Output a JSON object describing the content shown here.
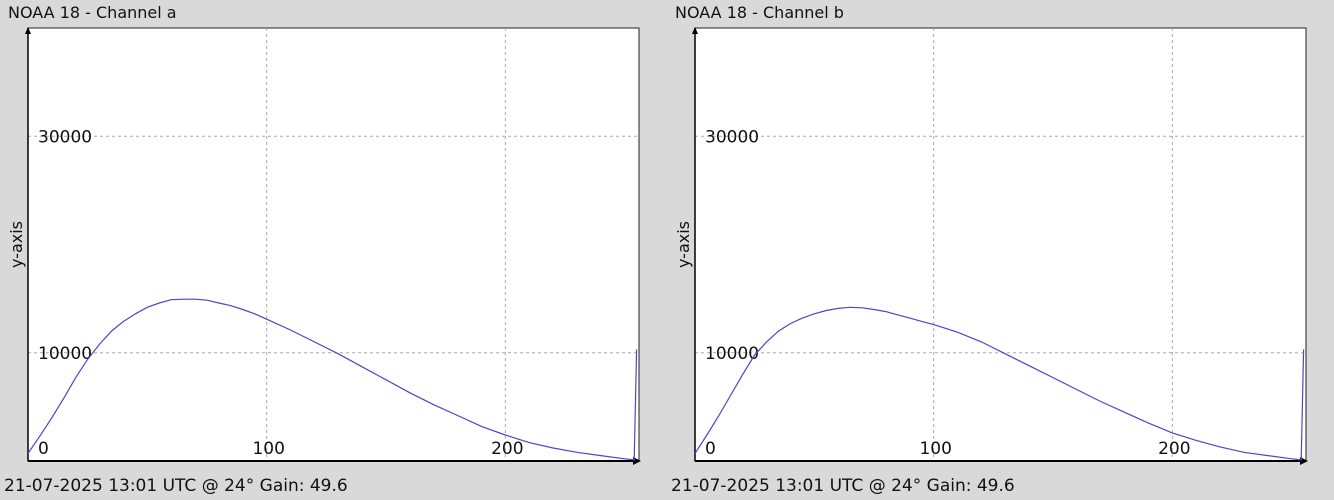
{
  "chart_data": [
    {
      "type": "line",
      "title": "NOAA 18 - Channel a",
      "ylabel": "y-axis",
      "xlabel": "",
      "footer": "21-07-2025 13:01 UTC @ 24° Gain: 49.6",
      "xlim": [
        0,
        256
      ],
      "ylim": [
        0,
        40000
      ],
      "x_ticks": [
        0,
        100,
        200
      ],
      "y_ticks": [
        10000,
        30000
      ],
      "grid": true,
      "series": [
        {
          "color": "#4848c8",
          "x": [
            0,
            5,
            10,
            15,
            20,
            25,
            30,
            35,
            40,
            45,
            50,
            55,
            60,
            65,
            70,
            75,
            80,
            85,
            90,
            95,
            100,
            110,
            120,
            130,
            140,
            150,
            160,
            170,
            180,
            190,
            200,
            210,
            220,
            230,
            240,
            250,
            254,
            255
          ],
          "values": [
            700,
            2300,
            4000,
            5800,
            7700,
            9400,
            10800,
            12000,
            12900,
            13600,
            14200,
            14600,
            14900,
            14950,
            14950,
            14850,
            14600,
            14350,
            14000,
            13600,
            13100,
            12100,
            11000,
            9900,
            8700,
            7500,
            6300,
            5200,
            4200,
            3200,
            2400,
            1700,
            1200,
            800,
            500,
            200,
            100,
            10300
          ]
        }
      ]
    },
    {
      "type": "line",
      "title": "NOAA 18 - Channel b",
      "ylabel": "y-axis",
      "xlabel": "",
      "footer": "21-07-2025 13:01 UTC @ 24° Gain: 49.6",
      "xlim": [
        0,
        256
      ],
      "ylim": [
        0,
        40000
      ],
      "x_ticks": [
        0,
        100,
        200
      ],
      "y_ticks": [
        10000,
        30000
      ],
      "grid": true,
      "series": [
        {
          "color": "#4848c8",
          "x": [
            0,
            5,
            10,
            15,
            20,
            25,
            30,
            35,
            40,
            45,
            50,
            55,
            60,
            65,
            70,
            75,
            80,
            85,
            90,
            95,
            100,
            110,
            120,
            130,
            140,
            150,
            160,
            170,
            180,
            190,
            200,
            210,
            220,
            230,
            240,
            250,
            254,
            255
          ],
          "values": [
            700,
            2400,
            4200,
            6100,
            8000,
            9800,
            11000,
            12000,
            12700,
            13200,
            13600,
            13900,
            14100,
            14200,
            14150,
            14000,
            13800,
            13500,
            13200,
            12900,
            12600,
            11900,
            11000,
            9900,
            8800,
            7700,
            6600,
            5500,
            4500,
            3500,
            2600,
            1900,
            1300,
            800,
            500,
            200,
            100,
            10300
          ]
        }
      ]
    }
  ]
}
